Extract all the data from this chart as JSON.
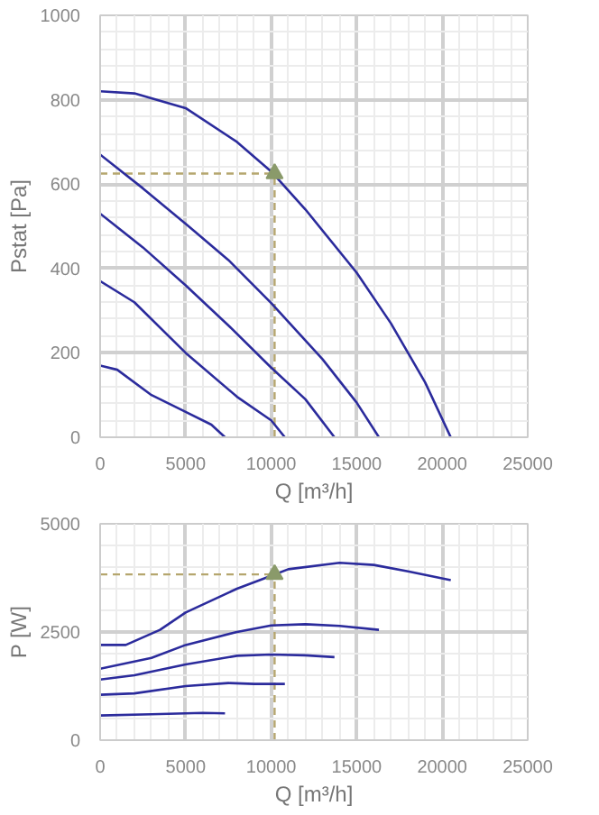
{
  "chart_data": [
    {
      "type": "line",
      "xlabel": "Q [m³/h]",
      "ylabel": "Pstat [Pa]",
      "xlim": [
        0,
        25000
      ],
      "ylim": [
        0,
        1000
      ],
      "xticks": [
        0,
        5000,
        10000,
        15000,
        20000,
        25000
      ],
      "yticks": [
        0,
        200,
        400,
        600,
        800,
        1000
      ],
      "grid": true,
      "marker": "none",
      "line_style": "solid",
      "ref_lines": [
        {
          "axis": "x",
          "value": 10200,
          "color": "#b5a66e",
          "line_style": "dashed"
        },
        {
          "axis": "y",
          "value": 625,
          "color": "#b5a66e",
          "line_style": "dashed"
        }
      ],
      "series": [
        {
          "color": "#2b2b9c",
          "x": [
            0,
            2000,
            5000,
            8000,
            10000,
            12000,
            15000,
            17000,
            19000,
            20500
          ],
          "values": [
            820,
            815,
            780,
            700,
            630,
            540,
            390,
            270,
            130,
            0
          ]
        },
        {
          "color": "#2b2b9c",
          "x": [
            0,
            2500,
            5000,
            7500,
            10000,
            13000,
            15000,
            16300
          ],
          "values": [
            670,
            590,
            506,
            420,
            318,
            185,
            82,
            0
          ]
        },
        {
          "color": "#2b2b9c",
          "x": [
            0,
            2500,
            5000,
            7500,
            10000,
            12000,
            13700
          ],
          "values": [
            530,
            450,
            360,
            265,
            165,
            90,
            0
          ]
        },
        {
          "color": "#2b2b9c",
          "x": [
            0,
            2000,
            5000,
            8000,
            10000,
            10800
          ],
          "values": [
            370,
            320,
            200,
            96,
            40,
            0
          ]
        },
        {
          "color": "#2b2b9c",
          "x": [
            0,
            1000,
            3000,
            5000,
            6500,
            7300
          ],
          "values": [
            170,
            160,
            100,
            60,
            30,
            0
          ]
        },
        {
          "type": "scatter",
          "marker": "triangle",
          "color": "#8a9a6a",
          "x": [
            10200
          ],
          "values": [
            625
          ]
        }
      ]
    },
    {
      "type": "line",
      "xlabel": "Q [m³/h]",
      "ylabel": "P [W]",
      "xlim": [
        0,
        25000
      ],
      "ylim": [
        0,
        5000
      ],
      "xticks": [
        0,
        5000,
        10000,
        15000,
        20000,
        25000
      ],
      "yticks": [
        0,
        2500,
        5000
      ],
      "grid": true,
      "marker": "none",
      "line_style": "solid",
      "ref_lines": [
        {
          "axis": "x",
          "value": 10200,
          "color": "#b5a66e",
          "line_style": "dashed"
        },
        {
          "axis": "y",
          "value": 3830,
          "color": "#b5a66e",
          "line_style": "dashed"
        }
      ],
      "series": [
        {
          "color": "#2b2b9c",
          "x": [
            0,
            1500,
            3500,
            5000,
            8000,
            10200,
            11000,
            14000,
            16000,
            18000,
            20500
          ],
          "values": [
            2200,
            2200,
            2550,
            2950,
            3500,
            3830,
            3950,
            4100,
            4050,
            3900,
            3700
          ]
        },
        {
          "color": "#2b2b9c",
          "x": [
            0,
            3000,
            5000,
            8000,
            10000,
            12000,
            14000,
            16300
          ],
          "values": [
            1650,
            1900,
            2200,
            2500,
            2650,
            2680,
            2640,
            2550
          ]
        },
        {
          "color": "#2b2b9c",
          "x": [
            0,
            2000,
            5000,
            8000,
            10000,
            12000,
            13700
          ],
          "values": [
            1400,
            1500,
            1750,
            1950,
            1980,
            1960,
            1920
          ]
        },
        {
          "color": "#2b2b9c",
          "x": [
            0,
            2000,
            5000,
            7500,
            9000,
            10800
          ],
          "values": [
            1050,
            1080,
            1250,
            1320,
            1300,
            1300
          ]
        },
        {
          "color": "#2b2b9c",
          "x": [
            0,
            3000,
            6000,
            7300
          ],
          "values": [
            570,
            600,
            630,
            620
          ]
        },
        {
          "type": "scatter",
          "marker": "triangle",
          "color": "#8a9a6a",
          "x": [
            10200
          ],
          "values": [
            3830
          ]
        }
      ]
    }
  ]
}
